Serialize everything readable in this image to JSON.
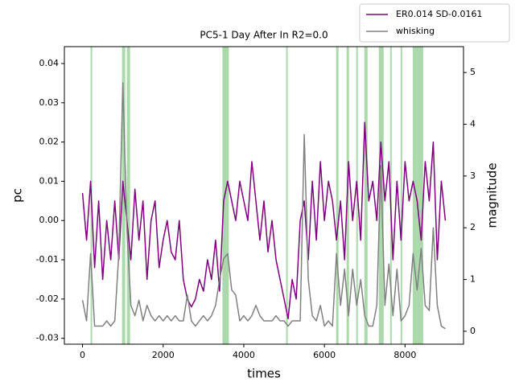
{
  "chart_data": {
    "type": "line",
    "title": "PC5-1 Day After In R2=0.0",
    "xlabel": "times",
    "ylabel": "pc",
    "y2label": "magnitude",
    "x": [
      0,
      100,
      200,
      300,
      400,
      500,
      600,
      700,
      800,
      900,
      1000,
      1100,
      1200,
      1300,
      1400,
      1500,
      1600,
      1700,
      1800,
      1900,
      2000,
      2100,
      2200,
      2300,
      2400,
      2500,
      2600,
      2700,
      2800,
      2900,
      3000,
      3100,
      3200,
      3300,
      3400,
      3500,
      3600,
      3700,
      3800,
      3900,
      4000,
      4100,
      4200,
      4300,
      4400,
      4500,
      4600,
      4700,
      4800,
      4900,
      5000,
      5100,
      5200,
      5300,
      5400,
      5500,
      5600,
      5700,
      5800,
      5900,
      6000,
      6100,
      6200,
      6300,
      6400,
      6500,
      6600,
      6700,
      6800,
      6900,
      7000,
      7100,
      7200,
      7300,
      7400,
      7500,
      7600,
      7700,
      7800,
      7900,
      8000,
      8100,
      8200,
      8300,
      8400,
      8500,
      8600,
      8700,
      8800,
      8900,
      9000
    ],
    "series": [
      {
        "name": "ER0.014 SD-0.0161",
        "color": "#800080",
        "axis": "y",
        "values": [
          0.007,
          -0.005,
          0.01,
          -0.012,
          0.005,
          -0.015,
          0.0,
          -0.01,
          0.005,
          -0.01,
          0.01,
          0.0,
          -0.01,
          0.008,
          -0.005,
          0.005,
          -0.015,
          0.0,
          0.005,
          -0.012,
          -0.005,
          0.0,
          -0.008,
          -0.01,
          0.0,
          -0.015,
          -0.02,
          -0.022,
          -0.02,
          -0.015,
          -0.018,
          -0.01,
          -0.015,
          -0.005,
          -0.018,
          0.005,
          0.01,
          0.005,
          0.0,
          0.01,
          0.005,
          0.0,
          0.015,
          0.005,
          -0.005,
          0.005,
          -0.008,
          0.0,
          -0.01,
          -0.015,
          -0.02,
          -0.025,
          -0.015,
          -0.02,
          0.0,
          0.005,
          -0.01,
          0.01,
          -0.005,
          0.015,
          0.0,
          0.01,
          0.005,
          -0.005,
          0.005,
          -0.01,
          0.015,
          0.0,
          0.01,
          -0.005,
          0.025,
          0.005,
          0.01,
          0.0,
          0.02,
          0.005,
          0.015,
          -0.01,
          0.01,
          -0.005,
          0.015,
          0.005,
          0.01,
          0.005,
          -0.005,
          0.015,
          0.005,
          0.02,
          -0.01,
          0.01,
          0.0
        ]
      },
      {
        "name": "whisking",
        "color": "#808080",
        "axis": "y2",
        "values": [
          0.6,
          0.2,
          1.5,
          0.1,
          0.1,
          0.1,
          0.2,
          0.1,
          0.2,
          1.5,
          4.8,
          2.0,
          0.5,
          0.3,
          0.6,
          0.2,
          0.5,
          0.3,
          0.2,
          0.3,
          0.2,
          0.3,
          0.2,
          0.3,
          0.2,
          0.2,
          0.7,
          0.2,
          0.1,
          0.2,
          0.3,
          0.2,
          0.3,
          0.5,
          1.0,
          1.4,
          1.5,
          0.8,
          0.7,
          0.2,
          0.3,
          0.2,
          0.3,
          0.5,
          0.3,
          0.2,
          0.2,
          0.2,
          0.3,
          0.2,
          0.2,
          0.1,
          0.2,
          0.2,
          0.2,
          3.8,
          1.0,
          0.3,
          0.2,
          0.5,
          0.1,
          0.2,
          0.1,
          1.5,
          0.5,
          1.2,
          0.3,
          1.2,
          0.5,
          1.0,
          0.3,
          0.1,
          0.1,
          0.5,
          3.2,
          0.5,
          1.3,
          0.3,
          1.2,
          0.2,
          0.3,
          0.5,
          1.5,
          0.8,
          1.6,
          0.5,
          0.4,
          2.0,
          0.5,
          0.1,
          0.05
        ]
      }
    ],
    "spans": [
      [
        200,
        240
      ],
      [
        980,
        1060
      ],
      [
        1100,
        1180
      ],
      [
        3470,
        3630
      ],
      [
        5050,
        5090
      ],
      [
        6290,
        6350
      ],
      [
        6550,
        6610
      ],
      [
        6790,
        6830
      ],
      [
        6990,
        7070
      ],
      [
        7350,
        7470
      ],
      [
        7630,
        7670
      ],
      [
        7890,
        7930
      ],
      [
        8190,
        8450
      ]
    ],
    "span_color": "#2ca02c",
    "xlim": [
      -450,
      9450
    ],
    "xticks": [
      0,
      2000,
      4000,
      6000,
      8000
    ],
    "ylim": [
      -0.0315,
      0.0443
    ],
    "yticks": [
      -0.03,
      -0.02,
      -0.01,
      {
        "value": 0,
        "label": "0.00"
      },
      0.01,
      0.02,
      0.03,
      0.04
    ],
    "y2lim": [
      -0.25,
      5.5
    ],
    "y2ticks": [
      0,
      1,
      2,
      3,
      4,
      5
    ],
    "legend": "upper right"
  }
}
